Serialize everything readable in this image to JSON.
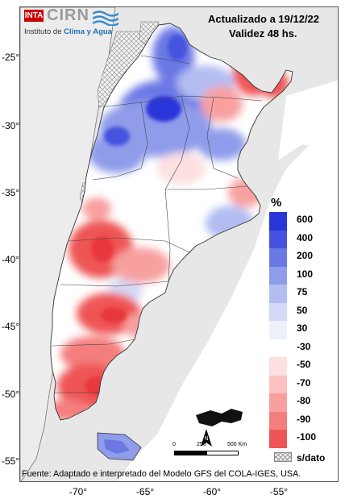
{
  "header": {
    "logo_inta": "INTA",
    "logo_cirn": "CIRN",
    "institute_prefix": "Instituto de ",
    "institute_highlight": "Clima y Agua",
    "updated": "Actualizado a 19/12/22",
    "validity": "Validez 48 hs."
  },
  "axes": {
    "lat_ticks": [
      "-25°",
      "-30°",
      "-35°",
      "-40°",
      "-45°",
      "-50°",
      "-55°"
    ],
    "lon_ticks": [
      "-70°",
      "-65°",
      "-60°",
      "-55°"
    ]
  },
  "legend": {
    "unit": "%",
    "items": [
      {
        "label": "600",
        "color": "#2b36d9"
      },
      {
        "label": "400",
        "color": "#4552df"
      },
      {
        "label": "200",
        "color": "#6a78e4"
      },
      {
        "label": "100",
        "color": "#8f9cea"
      },
      {
        "label": "75",
        "color": "#b3bdf1"
      },
      {
        "label": "50",
        "color": "#d3d9f7"
      },
      {
        "label": "30",
        "color": "#eef0fb"
      },
      {
        "label": "-30",
        "color": "#ffffff"
      },
      {
        "label": "-50",
        "color": "#fde0e0"
      },
      {
        "label": "-70",
        "color": "#fbc1c1"
      },
      {
        "label": "-80",
        "color": "#f8a0a0"
      },
      {
        "label": "-90",
        "color": "#f47e7e"
      },
      {
        "label": "-100",
        "color": "#ef5555"
      }
    ],
    "nodata_label": "s/dato",
    "extra_color": "#e8393c"
  },
  "scale_bar": {
    "labels": [
      "0",
      "250",
      "500 Km"
    ]
  },
  "north_arrow_label": "N",
  "footer": "Fuente: Adaptado e interpretado del Modelo GFS del COLA-IGES, USA."
}
